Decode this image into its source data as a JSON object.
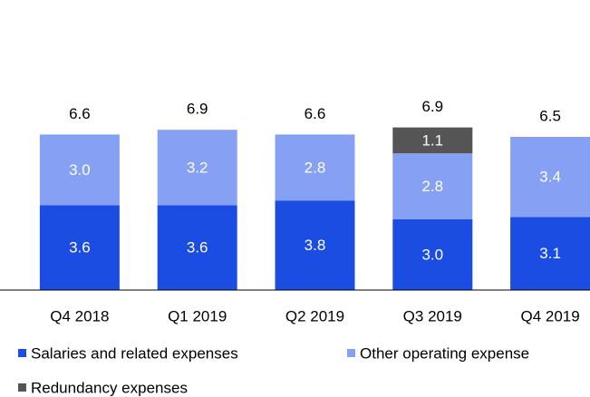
{
  "chart_data": {
    "type": "stacked_bar",
    "categories": [
      "Q4 2018",
      "Q1 2019",
      "Q2 2019",
      "Q3 2019",
      "Q4 2019"
    ],
    "series": [
      {
        "name": "Salaries and related expenses",
        "color": "#1c4de2",
        "values": [
          3.6,
          3.6,
          3.8,
          3.0,
          3.1
        ],
        "value_labels": [
          "3.6",
          "3.6",
          "3.8",
          "3.0",
          "3.1"
        ]
      },
      {
        "name": "Other operating expense",
        "color": "#86a0f4",
        "values": [
          3.0,
          3.2,
          2.8,
          2.8,
          3.4
        ],
        "value_labels": [
          "3.0",
          "3.2",
          "2.8",
          "2.8",
          "3.4"
        ]
      },
      {
        "name": "Redundancy expenses",
        "color": "#555555",
        "values": [
          null,
          null,
          null,
          1.1,
          null
        ],
        "value_labels": [
          null,
          null,
          null,
          "1.1",
          null
        ]
      }
    ],
    "totals": [
      6.6,
      6.9,
      6.6,
      6.9,
      6.5
    ],
    "ylim": [
      0,
      7.5
    ]
  }
}
